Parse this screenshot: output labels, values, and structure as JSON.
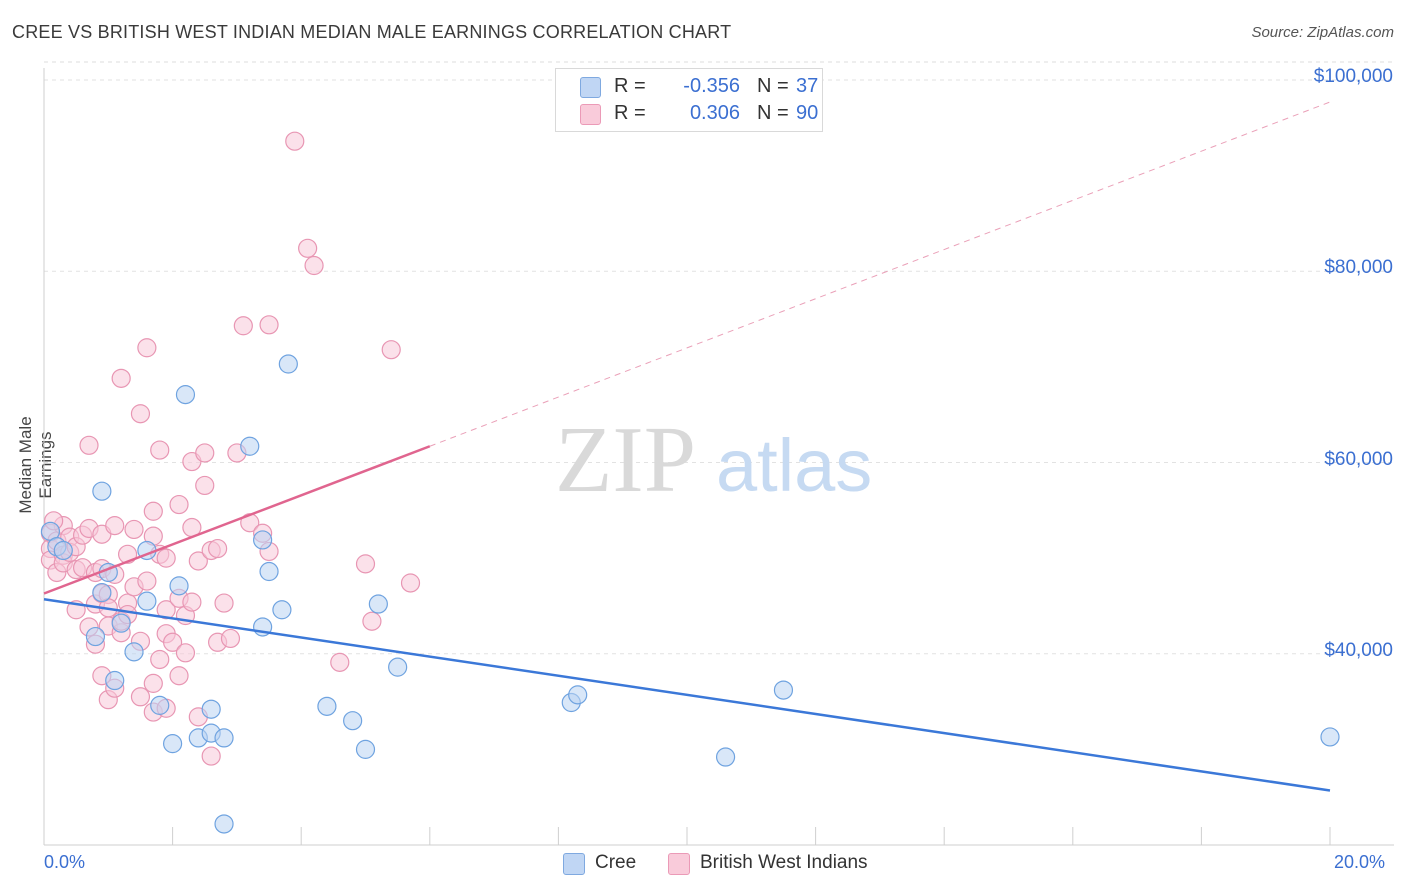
{
  "title": "CREE VS BRITISH WEST INDIAN MEDIAN MALE EARNINGS CORRELATION CHART",
  "source": "Source: ZipAtlas.com",
  "watermark": {
    "zip": "ZIP",
    "atlas": "atlas"
  },
  "legend": {
    "rows": [
      {
        "label": "R =",
        "r": "-0.356",
        "n_label": "N =",
        "n": "37",
        "color": "#a8c8f0"
      },
      {
        "label": "R =",
        "r": "0.306",
        "n_label": "N =",
        "n": "90",
        "color": "#f5b8cc"
      }
    ]
  },
  "bottom_legend": [
    "Cree",
    "British West Indians"
  ],
  "chart_data": {
    "type": "scatter",
    "title": "CREE VS BRITISH WEST INDIAN MEDIAN MALE EARNINGS CORRELATION CHART",
    "xlabel": "",
    "ylabel": "Median Male Earnings",
    "xlim": [
      0,
      20
    ],
    "ylim": [
      20000,
      102000
    ],
    "x_tick_labels": [
      "0.0%",
      "20.0%"
    ],
    "y_ticks": [
      40000,
      60000,
      80000,
      100000
    ],
    "y_tick_labels": [
      "$40,000",
      "$60,000",
      "$80,000",
      "$100,000"
    ],
    "grid": true,
    "legend_position": "top-center",
    "series": [
      {
        "name": "Cree",
        "color": "#6fa3e0",
        "fill": "#b9d3f3",
        "trend": {
          "x": [
            0,
            20
          ],
          "y": [
            45700,
            25700
          ]
        },
        "points": [
          [
            0.1,
            52800
          ],
          [
            0.2,
            51200
          ],
          [
            0.3,
            50800
          ],
          [
            0.9,
            57000
          ],
          [
            0.9,
            46400
          ],
          [
            1.0,
            48500
          ],
          [
            0.8,
            41800
          ],
          [
            1.2,
            43200
          ],
          [
            1.4,
            40200
          ],
          [
            1.1,
            37200
          ],
          [
            1.6,
            50800
          ],
          [
            1.6,
            45500
          ],
          [
            1.8,
            34600
          ],
          [
            2.0,
            30600
          ],
          [
            2.1,
            47100
          ],
          [
            2.2,
            67100
          ],
          [
            2.4,
            31200
          ],
          [
            2.6,
            31700
          ],
          [
            2.6,
            34200
          ],
          [
            2.8,
            31200
          ],
          [
            2.8,
            22200
          ],
          [
            3.2,
            61700
          ],
          [
            3.4,
            51900
          ],
          [
            3.4,
            42800
          ],
          [
            3.5,
            48600
          ],
          [
            3.7,
            44600
          ],
          [
            3.8,
            70300
          ],
          [
            4.4,
            34500
          ],
          [
            4.8,
            33000
          ],
          [
            5.0,
            30000
          ],
          [
            5.2,
            45200
          ],
          [
            5.5,
            38600
          ],
          [
            8.2,
            34900
          ],
          [
            8.3,
            35700
          ],
          [
            10.6,
            29200
          ],
          [
            11.5,
            36200
          ],
          [
            20.0,
            31300
          ]
        ]
      },
      {
        "name": "British West Indians",
        "color": "#e896b3",
        "fill": "#f8c8d8",
        "trend": {
          "x": [
            0,
            6
          ],
          "y": [
            46300,
            61700
          ]
        },
        "trend_extension": {
          "x": [
            6,
            20
          ],
          "y": [
            61700,
            97700
          ]
        },
        "points": [
          [
            0.1,
            52600
          ],
          [
            0.1,
            51000
          ],
          [
            0.1,
            49800
          ],
          [
            0.2,
            48500
          ],
          [
            0.2,
            51800
          ],
          [
            0.3,
            50300
          ],
          [
            0.3,
            53400
          ],
          [
            0.3,
            49500
          ],
          [
            0.4,
            52200
          ],
          [
            0.4,
            50600
          ],
          [
            0.5,
            48800
          ],
          [
            0.5,
            51200
          ],
          [
            0.6,
            52400
          ],
          [
            0.6,
            49000
          ],
          [
            0.7,
            53100
          ],
          [
            0.7,
            42800
          ],
          [
            0.7,
            61800
          ],
          [
            0.8,
            45200
          ],
          [
            0.8,
            41000
          ],
          [
            0.8,
            48500
          ],
          [
            0.9,
            52500
          ],
          [
            0.9,
            37700
          ],
          [
            0.9,
            48900
          ],
          [
            0.9,
            46300
          ],
          [
            1.0,
            46200
          ],
          [
            1.0,
            44800
          ],
          [
            1.0,
            42900
          ],
          [
            1.0,
            35200
          ],
          [
            1.1,
            53400
          ],
          [
            1.1,
            48300
          ],
          [
            1.2,
            42200
          ],
          [
            1.2,
            43400
          ],
          [
            1.2,
            68800
          ],
          [
            1.3,
            45300
          ],
          [
            1.3,
            44100
          ],
          [
            1.3,
            50400
          ],
          [
            1.4,
            53000
          ],
          [
            1.4,
            47000
          ],
          [
            1.5,
            65100
          ],
          [
            1.5,
            35500
          ],
          [
            1.5,
            41300
          ],
          [
            1.6,
            72000
          ],
          [
            1.6,
            47600
          ],
          [
            1.7,
            36900
          ],
          [
            1.7,
            33900
          ],
          [
            1.7,
            54900
          ],
          [
            1.7,
            52300
          ],
          [
            1.8,
            61300
          ],
          [
            1.8,
            39400
          ],
          [
            1.8,
            50400
          ],
          [
            1.9,
            44600
          ],
          [
            1.9,
            42100
          ],
          [
            1.9,
            34300
          ],
          [
            1.9,
            50000
          ],
          [
            2.0,
            41200
          ],
          [
            2.1,
            45800
          ],
          [
            2.1,
            37700
          ],
          [
            2.1,
            55600
          ],
          [
            2.2,
            44000
          ],
          [
            2.2,
            40100
          ],
          [
            2.3,
            53200
          ],
          [
            2.3,
            45400
          ],
          [
            2.3,
            60100
          ],
          [
            2.4,
            33400
          ],
          [
            2.4,
            49700
          ],
          [
            2.5,
            57600
          ],
          [
            2.5,
            61000
          ],
          [
            2.6,
            29300
          ],
          [
            2.6,
            50800
          ],
          [
            2.7,
            41200
          ],
          [
            2.7,
            51000
          ],
          [
            2.8,
            45300
          ],
          [
            2.9,
            41600
          ],
          [
            3.0,
            61000
          ],
          [
            3.1,
            74300
          ],
          [
            3.2,
            53700
          ],
          [
            3.4,
            52600
          ],
          [
            3.5,
            50700
          ],
          [
            3.5,
            74400
          ],
          [
            3.9,
            93600
          ],
          [
            4.1,
            82400
          ],
          [
            4.2,
            80600
          ],
          [
            4.6,
            39100
          ],
          [
            5.0,
            49400
          ],
          [
            5.1,
            43400
          ],
          [
            5.4,
            71800
          ],
          [
            5.7,
            47400
          ],
          [
            0.15,
            53900
          ],
          [
            0.5,
            44600
          ],
          [
            1.1,
            36400
          ]
        ]
      }
    ]
  }
}
